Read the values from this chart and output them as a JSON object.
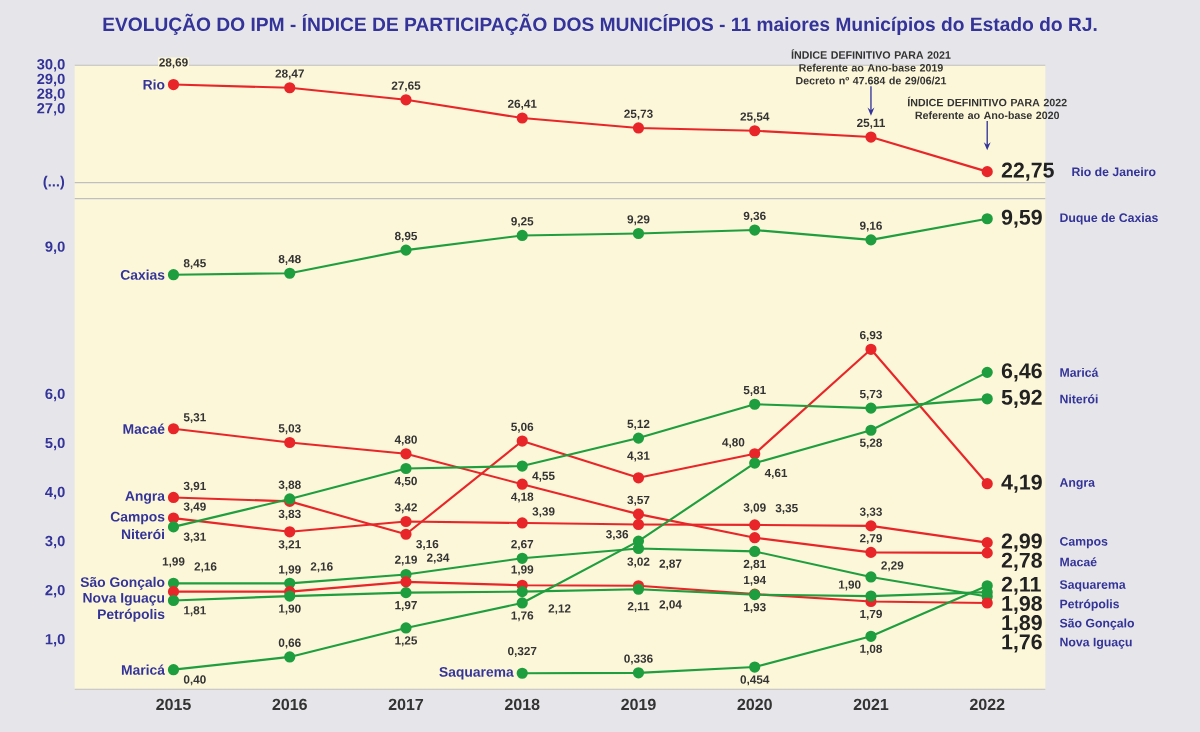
{
  "chart_data": [
    {
      "type": "line",
      "title": "EVOLUÇÃO DO IPM - ÍNDICE DE PARTICIPAÇÃO DOS MUNICÍPIOS - 11 maiores Municípios do Estado do RJ.",
      "categories": [
        "2015",
        "2016",
        "2017",
        "2018",
        "2019",
        "2020",
        "2021",
        "2022"
      ],
      "ylim": [
        22,
        30
      ],
      "yticks": [
        {
          "value": 27,
          "label": "27,0"
        },
        {
          "value": 28,
          "label": "28,0"
        },
        {
          "value": 29,
          "label": "29,0"
        },
        {
          "value": 30,
          "label": "30,0"
        }
      ],
      "tick_labels": "y",
      "marker": "circle",
      "series": [
        {
          "name": "Rio de Janeiro",
          "color": "#e8262a",
          "values": [
            28.69,
            28.47,
            27.65,
            26.41,
            25.73,
            25.54,
            25.11,
            22.75
          ],
          "value_labels": [
            "28,69",
            "28,47",
            "27,65",
            "26,41",
            "25,73",
            "25,54",
            "25,11",
            "22,75"
          ]
        }
      ],
      "annotations": [
        "(...)",
        {
          "text": "Rio",
          "x": "2015",
          "y": 28.69
        },
        {
          "text": "ÍNDICE DEFINITIVO PARA 2021 Referente ao Ano-base 2019 Decreto nº 47.684 de 29/06/21",
          "x": "2021"
        },
        {
          "text": "ÍNDICE DEFINITIVO PARA 2022 Referente ao Ano-base 2020",
          "x": "2022"
        }
      ]
    },
    {
      "type": "line",
      "categories": [
        "2015",
        "2016",
        "2017",
        "2018",
        "2019",
        "2020",
        "2021",
        "2022"
      ],
      "ylim": [
        0,
        10
      ],
      "yticks": [
        {
          "value": 1,
          "label": "1,0"
        },
        {
          "value": 2,
          "label": "2,0"
        },
        {
          "value": 3,
          "label": "3,0"
        },
        {
          "value": 4,
          "label": "4,0"
        },
        {
          "value": 5,
          "label": "5,0"
        },
        {
          "value": 6,
          "label": "6,0"
        },
        {
          "value": 9,
          "label": "9,0"
        }
      ],
      "marker": "circle",
      "series": [
        {
          "name": "Duque de Caxias",
          "color": "#1e9e3e",
          "values": [
            8.45,
            8.48,
            8.95,
            9.25,
            9.29,
            9.36,
            9.16,
            9.59
          ],
          "value_labels": [
            "8,45",
            "8,48",
            "8,95",
            "9,25",
            "9,29",
            "9,36",
            "9,16",
            "9,59"
          ]
        },
        {
          "name": "Macaé",
          "color": "#e8262a",
          "values": [
            5.31,
            5.03,
            4.8,
            4.18,
            3.57,
            3.09,
            2.79,
            2.78
          ],
          "value_labels": [
            "5,31",
            "5,03",
            "4,80",
            "4,18",
            "3,57",
            "3,09",
            "2,79",
            "2,78"
          ]
        },
        {
          "name": "Angra",
          "color": "#e8262a",
          "values": [
            3.91,
            3.83,
            3.16,
            5.06,
            4.31,
            4.8,
            6.93,
            4.19
          ],
          "value_labels": [
            "3,91",
            "3,83",
            "3,16",
            "5,06",
            "4,31",
            "4,80",
            "6,93",
            "4,19"
          ]
        },
        {
          "name": "Campos",
          "color": "#e8262a",
          "values": [
            3.49,
            3.21,
            3.42,
            3.39,
            3.36,
            3.35,
            3.33,
            2.99
          ],
          "value_labels": [
            "3,49",
            "3,21",
            "3,42",
            "3,39",
            "3,36",
            "3,35",
            "3,33",
            "2,99"
          ]
        },
        {
          "name": "Niterói",
          "color": "#1e9e3e",
          "values": [
            3.31,
            3.88,
            4.5,
            4.55,
            5.12,
            5.81,
            5.73,
            5.92
          ],
          "value_labels": [
            "3,31",
            "3,88",
            "4,50",
            "4,55",
            "5,12",
            "5,81",
            "5,73",
            "5,92"
          ]
        },
        {
          "name": "São Gonçalo",
          "color": "#1e9e3e",
          "values": [
            2.16,
            2.16,
            2.34,
            2.67,
            2.87,
            2.81,
            2.29,
            1.89
          ],
          "value_labels": [
            "2,16",
            "2,16",
            "2,34",
            "2,67",
            "2,87",
            "2,81",
            "2,29",
            "1,89"
          ]
        },
        {
          "name": "Nova Iguaçu",
          "color": "#e8262a",
          "values": [
            1.99,
            1.99,
            2.19,
            2.12,
            2.11,
            1.94,
            1.79,
            1.76
          ],
          "value_labels": [
            "1,99",
            "1,99",
            "2,19",
            "2,12",
            "2,11",
            "1,94",
            "1,79",
            "1,76"
          ]
        },
        {
          "name": "Petrópolis",
          "color": "#1e9e3e",
          "values": [
            1.81,
            1.9,
            1.97,
            1.99,
            2.04,
            1.93,
            1.9,
            1.98
          ],
          "value_labels": [
            "1,81",
            "1,90",
            "1,97",
            "1,99",
            "2,04",
            "1,93",
            "1,90",
            "1,98"
          ]
        },
        {
          "name": "Maricá",
          "color": "#1e9e3e",
          "values": [
            0.4,
            0.66,
            1.25,
            1.76,
            3.02,
            4.61,
            5.28,
            6.46
          ],
          "value_labels": [
            "0,40",
            "0,66",
            "1,25",
            "1,76",
            "3,02",
            "4,61",
            "5,28",
            "6,46"
          ]
        },
        {
          "name": "Saquarema",
          "color": "#1e9e3e",
          "values": [
            null,
            null,
            null,
            0.327,
            0.336,
            0.454,
            1.08,
            2.11
          ],
          "value_labels": [
            null,
            null,
            null,
            "0,327",
            "0,336",
            "0,454",
            "1,08",
            "2,11"
          ]
        }
      ],
      "annotations": [
        {
          "text": "Caxias",
          "x": "2015",
          "y": 8.45
        },
        {
          "text": "Macaé",
          "x": "2015",
          "y": 5.31
        },
        {
          "text": "Angra",
          "x": "2015",
          "y": 3.91
        },
        {
          "text": "Campos",
          "x": "2015",
          "y": 3.49
        },
        {
          "text": "Niterói",
          "x": "2015",
          "y": 3.31
        },
        {
          "text": "São Gonçalo",
          "x": "2015",
          "y": 2.16
        },
        {
          "text": "Nova Iguaçu",
          "x": "2015",
          "y": 1.99
        },
        {
          "text": "Petrópolis",
          "x": "2015",
          "y": 1.81
        },
        {
          "text": "Maricá",
          "x": "2015",
          "y": 0.4
        },
        {
          "text": "Saquarema",
          "x": "2018",
          "y": 0.327
        }
      ]
    }
  ]
}
